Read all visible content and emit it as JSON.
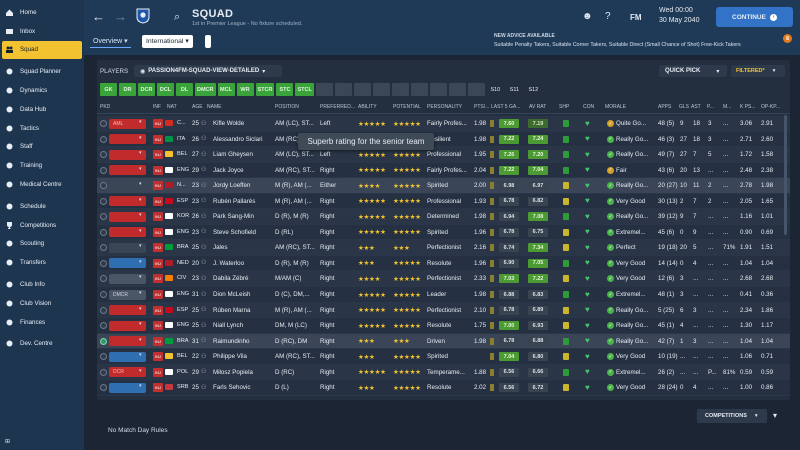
{
  "sidebar": {
    "items": [
      {
        "label": "Home",
        "icon": "home-icon"
      },
      {
        "label": "Inbox",
        "icon": "inbox-icon"
      },
      {
        "label": "Squad",
        "icon": "squad-icon",
        "active": true
      },
      {
        "label": "Squad Planner",
        "icon": "planner-icon"
      },
      {
        "label": "Dynamics",
        "icon": "dynamics-icon"
      },
      {
        "label": "Data Hub",
        "icon": "data-hub-icon"
      },
      {
        "label": "Tactics",
        "icon": "tactics-icon"
      },
      {
        "label": "Staff",
        "icon": "staff-icon"
      },
      {
        "label": "Training",
        "icon": "training-icon"
      },
      {
        "label": "Medical Centre",
        "icon": "medical-icon"
      },
      {
        "label": "Schedule",
        "icon": "schedule-icon"
      },
      {
        "label": "Competitions",
        "icon": "trophy-icon"
      },
      {
        "label": "Scouting",
        "icon": "scouting-icon"
      },
      {
        "label": "Transfers",
        "icon": "transfers-icon"
      },
      {
        "label": "Club Info",
        "icon": "club-info-icon"
      },
      {
        "label": "Club Vision",
        "icon": "club-vision-icon"
      },
      {
        "label": "Finances",
        "icon": "finances-icon"
      },
      {
        "label": "Dev. Centre",
        "icon": "dev-centre-icon"
      }
    ]
  },
  "header": {
    "title": "SQUAD",
    "subtitle": "1st in Premier League - No fixture scheduled.",
    "fm": "FM",
    "date_line1": "Wed 00:00",
    "date_line2": "30 May 2040",
    "continue_label": "CONTINUE"
  },
  "advice": {
    "title": "NEW ADVICE AVAILABLE",
    "text": "Suitable Penalty Takers, Suitable Corner Takers, Suitable Direct (Small Chance of Shot) Free-Kick Takers",
    "badge": "8"
  },
  "tabs": {
    "overview": "Overview",
    "international": "International"
  },
  "toolbar": {
    "players_label": "PLAYERS",
    "view": "PASSION4FM-SQUAD-VIEW-DETAILED",
    "quick_pick": "QUICK PICK",
    "filtered": "FILTERED*"
  },
  "position_chips": [
    {
      "label": "GK",
      "state": "on"
    },
    {
      "label": "DR",
      "state": "on"
    },
    {
      "label": "DCR",
      "state": "on"
    },
    {
      "label": "DCL",
      "state": "on"
    },
    {
      "label": "DL",
      "state": "on"
    },
    {
      "label": "DMCR",
      "state": "on"
    },
    {
      "label": "MCL",
      "state": "on"
    },
    {
      "label": "WR",
      "state": "on"
    },
    {
      "label": "STCR",
      "state": "on"
    },
    {
      "label": "STC",
      "state": "on"
    },
    {
      "label": "STCL",
      "state": "on"
    },
    {
      "label": "",
      "state": "off"
    },
    {
      "label": "",
      "state": "off"
    },
    {
      "label": "",
      "state": "off"
    },
    {
      "label": "",
      "state": "off"
    },
    {
      "label": "",
      "state": "off"
    },
    {
      "label": "",
      "state": "off"
    },
    {
      "label": "",
      "state": "off"
    },
    {
      "label": "",
      "state": "off"
    },
    {
      "label": "",
      "state": "off"
    },
    {
      "label": "S10",
      "state": "plain"
    },
    {
      "label": "S11",
      "state": "plain"
    },
    {
      "label": "S12",
      "state": "plain"
    }
  ],
  "columns": {
    "pkd": "PKD",
    "inf": "INF",
    "nat": "NAT",
    "age": "AGE",
    "name": "NAME",
    "position": "POSITION",
    "foot": "PREFERRED...",
    "ability": "ABILITY",
    "potential": "POTENTIAL",
    "personality": "PERSONALITY",
    "pts": "PTS/...",
    "last5": "LAST 5 GA...",
    "avrat": "AV RAT",
    "shp": "SHP",
    "con": "CON",
    "morale": "MORALE",
    "apps": "APPS",
    "gls": "GLS",
    "ast": "AST",
    "pom": "P...",
    "mins": "M...",
    "kps": "K PS...",
    "opkp": "OP-KP..."
  },
  "players": [
    {
      "role": "AML",
      "role_color": "red",
      "nat": "C...",
      "flag": "#d52b1e",
      "age": "25",
      "name": "Kifle Wolde",
      "position": "AM (LC), ST...",
      "foot": "Left",
      "ability": "★★★★★",
      "potential": "★★★★★",
      "personality": "Fairly Profes...",
      "pts": "1.98",
      "last5": "7.60",
      "avrat": "7.19",
      "l5c": "g-green",
      "arc": "g-dgreen",
      "shp": "#2e9a3a",
      "morale": "Quite Go...",
      "morale_color": "#d1a12a",
      "apps": "48 (5)",
      "gls": "9",
      "ast": "18",
      "pom": "3",
      "mins": "...",
      "kps": "3.06",
      "opkp": "2.91"
    },
    {
      "role": "",
      "role_color": "red",
      "nat": "ITA",
      "flag": "#009246",
      "age": "26",
      "name": "Alessandro Siclari",
      "position": "AM (RC), ST...",
      "foot": "Right",
      "ability": "★★★★★",
      "potential": "★★★★★",
      "personality": "Resilient",
      "pts": "1.98",
      "last5": "7.22",
      "avrat": "7.24",
      "l5c": "g-green",
      "arc": "g-green",
      "shp": "#2e9a3a",
      "morale": "Really Go...",
      "morale_color": "#4bb34b",
      "apps": "46 (3)",
      "gls": "27",
      "ast": "18",
      "pom": "3",
      "mins": "...",
      "kps": "2.71",
      "opkp": "2.60"
    },
    {
      "role": "",
      "role_color": "red",
      "nat": "BEL",
      "flag": "#f2c230",
      "age": "27",
      "name": "Liam Gheysen",
      "position": "AM (LC), ST...",
      "foot": "Left",
      "ability": "★★★★★",
      "potential": "★★★★★",
      "personality": "Professional",
      "pts": "1.95",
      "last5": "7.26",
      "avrat": "7.20",
      "l5c": "g-green",
      "arc": "g-green",
      "shp": "#2e9a3a",
      "morale": "Really Go...",
      "morale_color": "#4bb34b",
      "apps": "49 (7)",
      "gls": "27",
      "ast": "7",
      "pom": "5",
      "mins": "...",
      "kps": "1.72",
      "opkp": "1.58"
    },
    {
      "role": "",
      "role_color": "red",
      "nat": "ENG",
      "flag": "#ffffff",
      "age": "29",
      "name": "Jack Joyce",
      "position": "AM (RC), ST...",
      "foot": "Right",
      "ability": "★★★★★",
      "potential": "★★★★★",
      "personality": "Fairly Profes...",
      "pts": "2.04",
      "last5": "7.22",
      "avrat": "7.04",
      "l5c": "g-green",
      "arc": "g-green",
      "shp": "#2e9a3a",
      "morale": "Fair",
      "morale_color": "#d1a12a",
      "apps": "43 (6)",
      "gls": "20",
      "ast": "13",
      "pom": "...",
      "mins": "...",
      "kps": "2.48",
      "opkp": "2.38"
    },
    {
      "role": "",
      "role_color": "dark",
      "nat": "N...",
      "flag": "#ae1c28",
      "age": "23",
      "name": "Jordy Loeffen",
      "position": "M (R), AM (...",
      "foot": "Either",
      "ability": "★★★★",
      "potential": "★★★★★",
      "personality": "Spirited",
      "pts": "2.00",
      "last5": "6.98",
      "avrat": "6.97",
      "l5c": "g-grey",
      "arc": "g-grey",
      "shp": "#c9b62a",
      "morale": "Really Go...",
      "morale_color": "#4bb34b",
      "apps": "20 (27)",
      "gls": "10",
      "ast": "11",
      "pom": "2",
      "mins": "...",
      "kps": "2.78",
      "opkp": "1.98",
      "hl": true
    },
    {
      "role": "",
      "role_color": "red",
      "nat": "ESP",
      "flag": "#c60b1e",
      "age": "23",
      "name": "Rubén Pallarés",
      "position": "M (R), AM (...",
      "foot": "Right",
      "ability": "★★★★★",
      "potential": "★★★★★",
      "personality": "Professional",
      "pts": "1.93",
      "last5": "6.78",
      "avrat": "6.82",
      "l5c": "g-grey",
      "arc": "g-grey",
      "shp": "#c9b62a",
      "morale": "Very Good",
      "morale_color": "#4bb34b",
      "apps": "30 (13)",
      "gls": "2",
      "ast": "7",
      "pom": "2",
      "mins": "...",
      "kps": "2.05",
      "opkp": "1.65"
    },
    {
      "role": "",
      "role_color": "red",
      "nat": "KOR",
      "flag": "#ffffff",
      "age": "26",
      "name": "Park Sang-Min",
      "position": "D (R), M (R)",
      "foot": "Right",
      "ability": "★★★★★",
      "potential": "★★★★★",
      "personality": "Determined",
      "pts": "1.98",
      "last5": "6.94",
      "avrat": "7.08",
      "l5c": "g-grey",
      "arc": "g-green",
      "shp": "#2e9a3a",
      "morale": "Really Go...",
      "morale_color": "#4bb34b",
      "apps": "39 (12)",
      "gls": "9",
      "ast": "7",
      "pom": "...",
      "mins": "...",
      "kps": "1.16",
      "opkp": "1.01"
    },
    {
      "role": "",
      "role_color": "red",
      "nat": "ENG",
      "flag": "#ffffff",
      "age": "23",
      "name": "Steve Schofield",
      "position": "D (RL)",
      "foot": "Right",
      "ability": "★★★★★",
      "potential": "★★★★★",
      "personality": "Spirited",
      "pts": "1.96",
      "last5": "6.78",
      "avrat": "6.75",
      "l5c": "g-grey",
      "arc": "g-grey",
      "shp": "#c9b62a",
      "morale": "Extremel...",
      "morale_color": "#4bb34b",
      "apps": "45 (6)",
      "gls": "0",
      "ast": "9",
      "pom": "...",
      "mins": "...",
      "kps": "0.90",
      "opkp": "0.69"
    },
    {
      "role": "",
      "role_color": "dark",
      "nat": "BRA",
      "flag": "#009c3b",
      "age": "25",
      "name": "Jales",
      "position": "AM (RC), ST...",
      "foot": "Right",
      "ability": "★★★",
      "potential": "★★★",
      "personality": "Perfectionist",
      "pts": "2.16",
      "last5": "6.74",
      "avrat": "7.34",
      "l5c": "g-grey",
      "arc": "g-green",
      "shp": "#c9b62a",
      "morale": "Perfect",
      "morale_color": "#4bb34b",
      "apps": "19 (18)",
      "gls": "20",
      "ast": "5",
      "pom": "...",
      "mins": "71%",
      "kps": "1.91",
      "opkp": "1.51"
    },
    {
      "role": "",
      "role_color": "blue",
      "nat": "NED",
      "flag": "#ae1c28",
      "age": "20",
      "name": "J. Waterloo",
      "position": "D (R), M (R)",
      "foot": "Right",
      "ability": "★★★",
      "potential": "★★★★★",
      "personality": "Resolute",
      "pts": "1.96",
      "last5": "6.90",
      "avrat": "7.05",
      "l5c": "g-grey",
      "arc": "g-green",
      "shp": "#2e9a3a",
      "morale": "Very Good",
      "morale_color": "#4bb34b",
      "apps": "14 (14)",
      "gls": "0",
      "ast": "4",
      "pom": "...",
      "mins": "...",
      "kps": "1.04",
      "opkp": "1.04"
    },
    {
      "role": "",
      "role_color": "grey",
      "nat": "CIV",
      "flag": "#f77f00",
      "age": "23",
      "name": "Dabila Zébré",
      "position": "M/AM (C)",
      "foot": "Right",
      "ability": "★★★★",
      "potential": "★★★★★",
      "personality": "Perfectionist",
      "pts": "2.33",
      "last5": "7.03",
      "avrat": "7.22",
      "l5c": "g-green",
      "arc": "g-green",
      "shp": "#c9b62a",
      "morale": "Very Good",
      "morale_color": "#4bb34b",
      "apps": "12 (6)",
      "gls": "3",
      "ast": "...",
      "pom": "...",
      "mins": "...",
      "kps": "2.68",
      "opkp": "2.68"
    },
    {
      "role": "DMCR",
      "role_color": "grey",
      "nat": "ENG",
      "flag": "#ffffff",
      "age": "31",
      "name": "Dion McLeish",
      "position": "D (C), DM,...",
      "foot": "Right",
      "ability": "★★★★★",
      "potential": "★★★★★",
      "personality": "Leader",
      "pts": "1.98",
      "last5": "6.88",
      "avrat": "6.83",
      "l5c": "g-grey",
      "arc": "g-grey",
      "shp": "#2e9a3a",
      "morale": "Extremel...",
      "morale_color": "#4bb34b",
      "apps": "48 (1)",
      "gls": "3",
      "ast": "...",
      "pom": "...",
      "mins": "...",
      "kps": "0.41",
      "opkp": "0.36"
    },
    {
      "role": "",
      "role_color": "red",
      "nat": "ESP",
      "flag": "#c60b1e",
      "age": "25",
      "name": "Rúben Marna",
      "position": "M (R), AM (...",
      "foot": "Right",
      "ability": "★★★★★",
      "potential": "★★★★★",
      "personality": "Perfectionist",
      "pts": "2.10",
      "last5": "6.78",
      "avrat": "6.89",
      "l5c": "g-grey",
      "arc": "g-grey",
      "shp": "#c9b62a",
      "morale": "Really Go...",
      "morale_color": "#4bb34b",
      "apps": "5 (25)",
      "gls": "6",
      "ast": "3",
      "pom": "...",
      "mins": "...",
      "kps": "2.34",
      "opkp": "1.86"
    },
    {
      "role": "",
      "role_color": "red",
      "nat": "ENG",
      "flag": "#ffffff",
      "age": "25",
      "name": "Niall Lynch",
      "position": "DM, M (LC)",
      "foot": "Right",
      "ability": "★★★★★",
      "potential": "★★★★★",
      "personality": "Resolute",
      "pts": "1.75",
      "last5": "7.00",
      "avrat": "6.93",
      "l5c": "g-green",
      "arc": "g-grey",
      "shp": "#c9b62a",
      "morale": "Really Go...",
      "morale_color": "#4bb34b",
      "apps": "45 (1)",
      "gls": "4",
      "ast": "...",
      "pom": "...",
      "mins": "...",
      "kps": "1.30",
      "opkp": "1.17"
    },
    {
      "role": "",
      "role_color": "red",
      "nat": "BRA",
      "flag": "#009c3b",
      "age": "31",
      "name": "Raimundinho",
      "position": "D (RC), DM",
      "foot": "Right",
      "ability": "★★★",
      "potential": "★★★",
      "personality": "Driven",
      "pts": "1.98",
      "last5": "6.78",
      "avrat": "6.88",
      "l5c": "g-grey",
      "arc": "g-grey",
      "shp": "#2e9a3a",
      "morale": "Really Go...",
      "morale_color": "#4bb34b",
      "apps": "42 (7)",
      "gls": "1",
      "ast": "3",
      "pom": "...",
      "mins": "...",
      "kps": "1.04",
      "opkp": "1.04",
      "hl": true,
      "checked": true
    },
    {
      "role": "",
      "role_color": "blue",
      "nat": "BEL",
      "flag": "#f2c230",
      "age": "22",
      "name": "Philippe Vila",
      "position": "AM (RC), ST...",
      "foot": "Right",
      "ability": "★★★",
      "potential": "★★★★★",
      "personality": "Spirited",
      "pts": "",
      "last5": "7.04",
      "avrat": "6.80",
      "l5c": "g-green",
      "arc": "g-grey",
      "shp": "#c9b62a",
      "morale": "Very Good",
      "morale_color": "#4bb34b",
      "apps": "10 (19)",
      "gls": "...",
      "ast": "...",
      "pom": "...",
      "mins": "...",
      "kps": "1.06",
      "opkp": "0.71"
    },
    {
      "role": "DCR",
      "role_color": "red",
      "nat": "POL",
      "flag": "#ffffff",
      "age": "29",
      "name": "Miłosz Popiela",
      "position": "D (RC)",
      "foot": "Right",
      "ability": "★★★★★",
      "potential": "★★★★★",
      "personality": "Temperame...",
      "pts": "1.88",
      "last5": "6.56",
      "avrat": "6.66",
      "l5c": "g-grey",
      "arc": "g-grey",
      "shp": "#2e9a3a",
      "morale": "Extremel...",
      "morale_color": "#4bb34b",
      "apps": "26 (2)",
      "gls": "...",
      "ast": "...",
      "pom": "P...",
      "mins": "81%",
      "kps": "0.59",
      "opkp": "0.59"
    },
    {
      "role": "",
      "role_color": "blue",
      "nat": "SRB",
      "flag": "#c6363c",
      "age": "25",
      "name": "Farls Sehovic",
      "position": "D (L)",
      "foot": "Right",
      "ability": "★★★",
      "potential": "★★★★★",
      "personality": "Resolute",
      "pts": "2.02",
      "last5": "6.56",
      "avrat": "6.72",
      "l5c": "g-grey",
      "arc": "g-grey",
      "shp": "#c9b62a",
      "morale": "Very Good",
      "morale_color": "#4bb34b",
      "apps": "28 (24)",
      "gls": "0",
      "ast": "4",
      "pom": "...",
      "mins": "...",
      "kps": "1.00",
      "opkp": "0.86"
    }
  ],
  "tooltip": "Superb rating for the senior team",
  "footer": {
    "competitions": "COMPETITIONS",
    "match_day_rules": "No Match Day Rules"
  }
}
